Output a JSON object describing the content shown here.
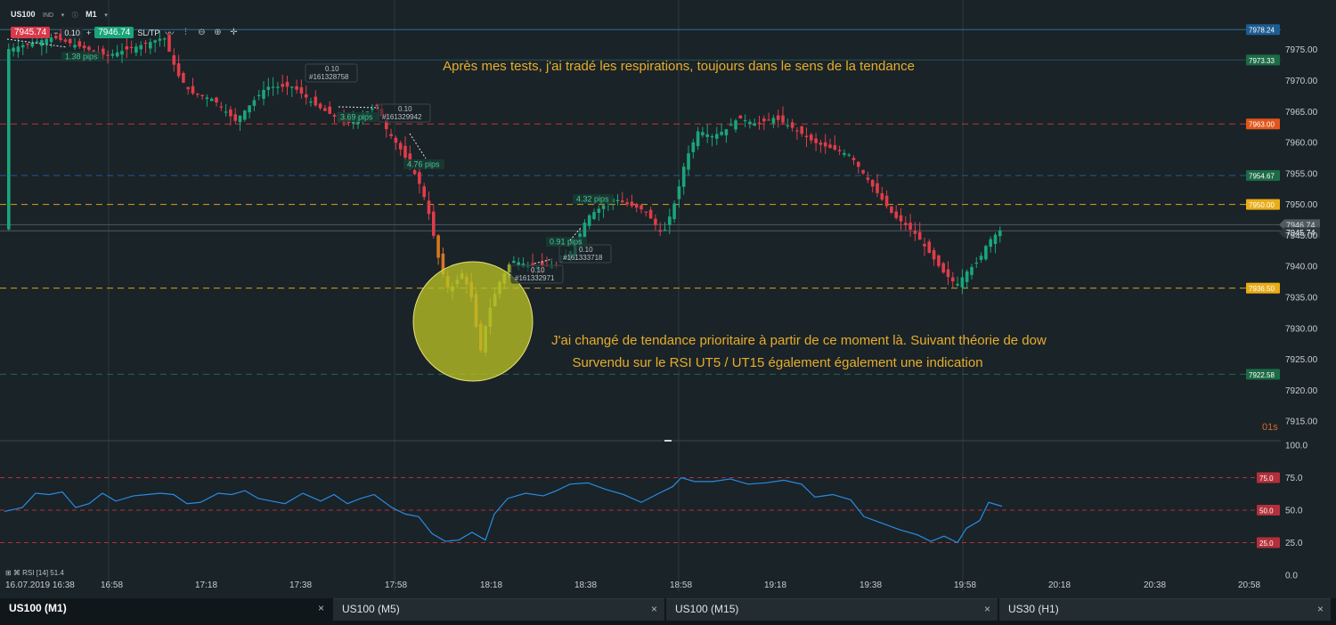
{
  "toolbar": {
    "symbol": "US100",
    "symbol_type": "IND",
    "timeframe": "M1",
    "sell_price": "7945.74",
    "quantity": "0.10",
    "buy_price": "7946.74",
    "sltp_label": "SL/TP",
    "minus": "−",
    "plus": "+",
    "icons": [
      "line-chart-icon",
      "candles-icon",
      "zoom-out-icon",
      "zoom-in-icon",
      "crosshair-icon"
    ]
  },
  "annotations": {
    "top_text": "Après mes tests, j'ai tradé les respirations, toujours dans le sens de la tendance",
    "mid_text_line1": "J'ai changé de tendance prioritaire à partir de ce moment là. Suivant théorie de dow",
    "mid_text_line2": "Survendu sur le RSI UT5 / UT15 également également une indication"
  },
  "trades": [
    {
      "qty": "0.10",
      "id": "#161328758"
    },
    {
      "qty": "0.10",
      "id": "#161329942"
    },
    {
      "qty": "0.10",
      "id": "#161333718"
    },
    {
      "qty": "0.10",
      "id": "#161332971"
    }
  ],
  "pips_labels": [
    "1.38 pips",
    "3.69 pips",
    "4.76 pips",
    "4.32 pips",
    "0.91 pips"
  ],
  "countdown": "01s",
  "rsi_legend": "⊞ ⌘ RSI [14] 51.4",
  "price_axis": {
    "ticks": [
      7975,
      7970,
      7965,
      7960,
      7955,
      7950,
      7945,
      7940,
      7935,
      7930,
      7925,
      7920,
      7915
    ],
    "ticks_text": [
      "7975.00",
      "7970.00",
      "7965.00",
      "7960.00",
      "7955.00",
      "7950.00",
      "7945.00",
      "7940.00",
      "7935.00",
      "7930.00",
      "7925.00",
      "7920.00",
      "7915.00"
    ],
    "range": [
      7912,
      7981
    ]
  },
  "levels": [
    {
      "price": 7978.24,
      "label": "7978.24",
      "line": "#2f6f8f",
      "box": "#1c5d91",
      "style": "solid"
    },
    {
      "price": 7973.33,
      "label": "7973.33",
      "line": "#21535a",
      "box": "#1c6b46",
      "style": "solid"
    },
    {
      "price": 7963.0,
      "label": "7963.00",
      "line": "#c0392b",
      "box": "#e2561c",
      "style": "dashed"
    },
    {
      "price": 7954.67,
      "label": "7954.67",
      "line": "#1c5d91",
      "box": "#1c6b46",
      "style": "dashed"
    },
    {
      "price": 7950.0,
      "label": "7950.00",
      "line": "#d7a318",
      "box": "#e8ad18",
      "style": "dashed"
    },
    {
      "price": 7936.5,
      "label": "7936.50",
      "line": "#d7a318",
      "box": "#e8ad18",
      "style": "dashed"
    },
    {
      "price": 7922.58,
      "label": "7922.58",
      "line": "#1c6b46",
      "box": "#1c6b46",
      "style": "dashed"
    }
  ],
  "current_price": {
    "ask": "7946.74",
    "bid": "7945.74"
  },
  "rsi_axis": {
    "ticks": [
      100,
      75,
      50,
      25,
      0
    ],
    "ticks_text": [
      "100.0",
      "75.0",
      "50.0",
      "25.0",
      "0.0"
    ],
    "levels": [
      75,
      50,
      25
    ],
    "level_labels": [
      "75.0",
      "50.0",
      "25.0"
    ]
  },
  "time_axis": {
    "labels": [
      "16.07.2019 16:38",
      "16:58",
      "17:18",
      "17:38",
      "17:58",
      "18:18",
      "18:38",
      "18:58",
      "19:18",
      "19:38",
      "19:58",
      "20:18",
      "20:38",
      "20:58"
    ]
  },
  "tabs": [
    {
      "label": "US100 (M1)",
      "active": true
    },
    {
      "label": "US100 (M5)",
      "active": false
    },
    {
      "label": "US100 (M15)",
      "active": false
    },
    {
      "label": "US30 (H1)",
      "active": false
    }
  ],
  "tab_close": "×",
  "colors": {
    "background": "#1a2328",
    "bull": "#19a67a",
    "bear": "#e03c4a",
    "rsi_line": "#2a8be0",
    "annotation_text": "#e7ad2a",
    "highlight_circle": "#b9c025"
  }
}
